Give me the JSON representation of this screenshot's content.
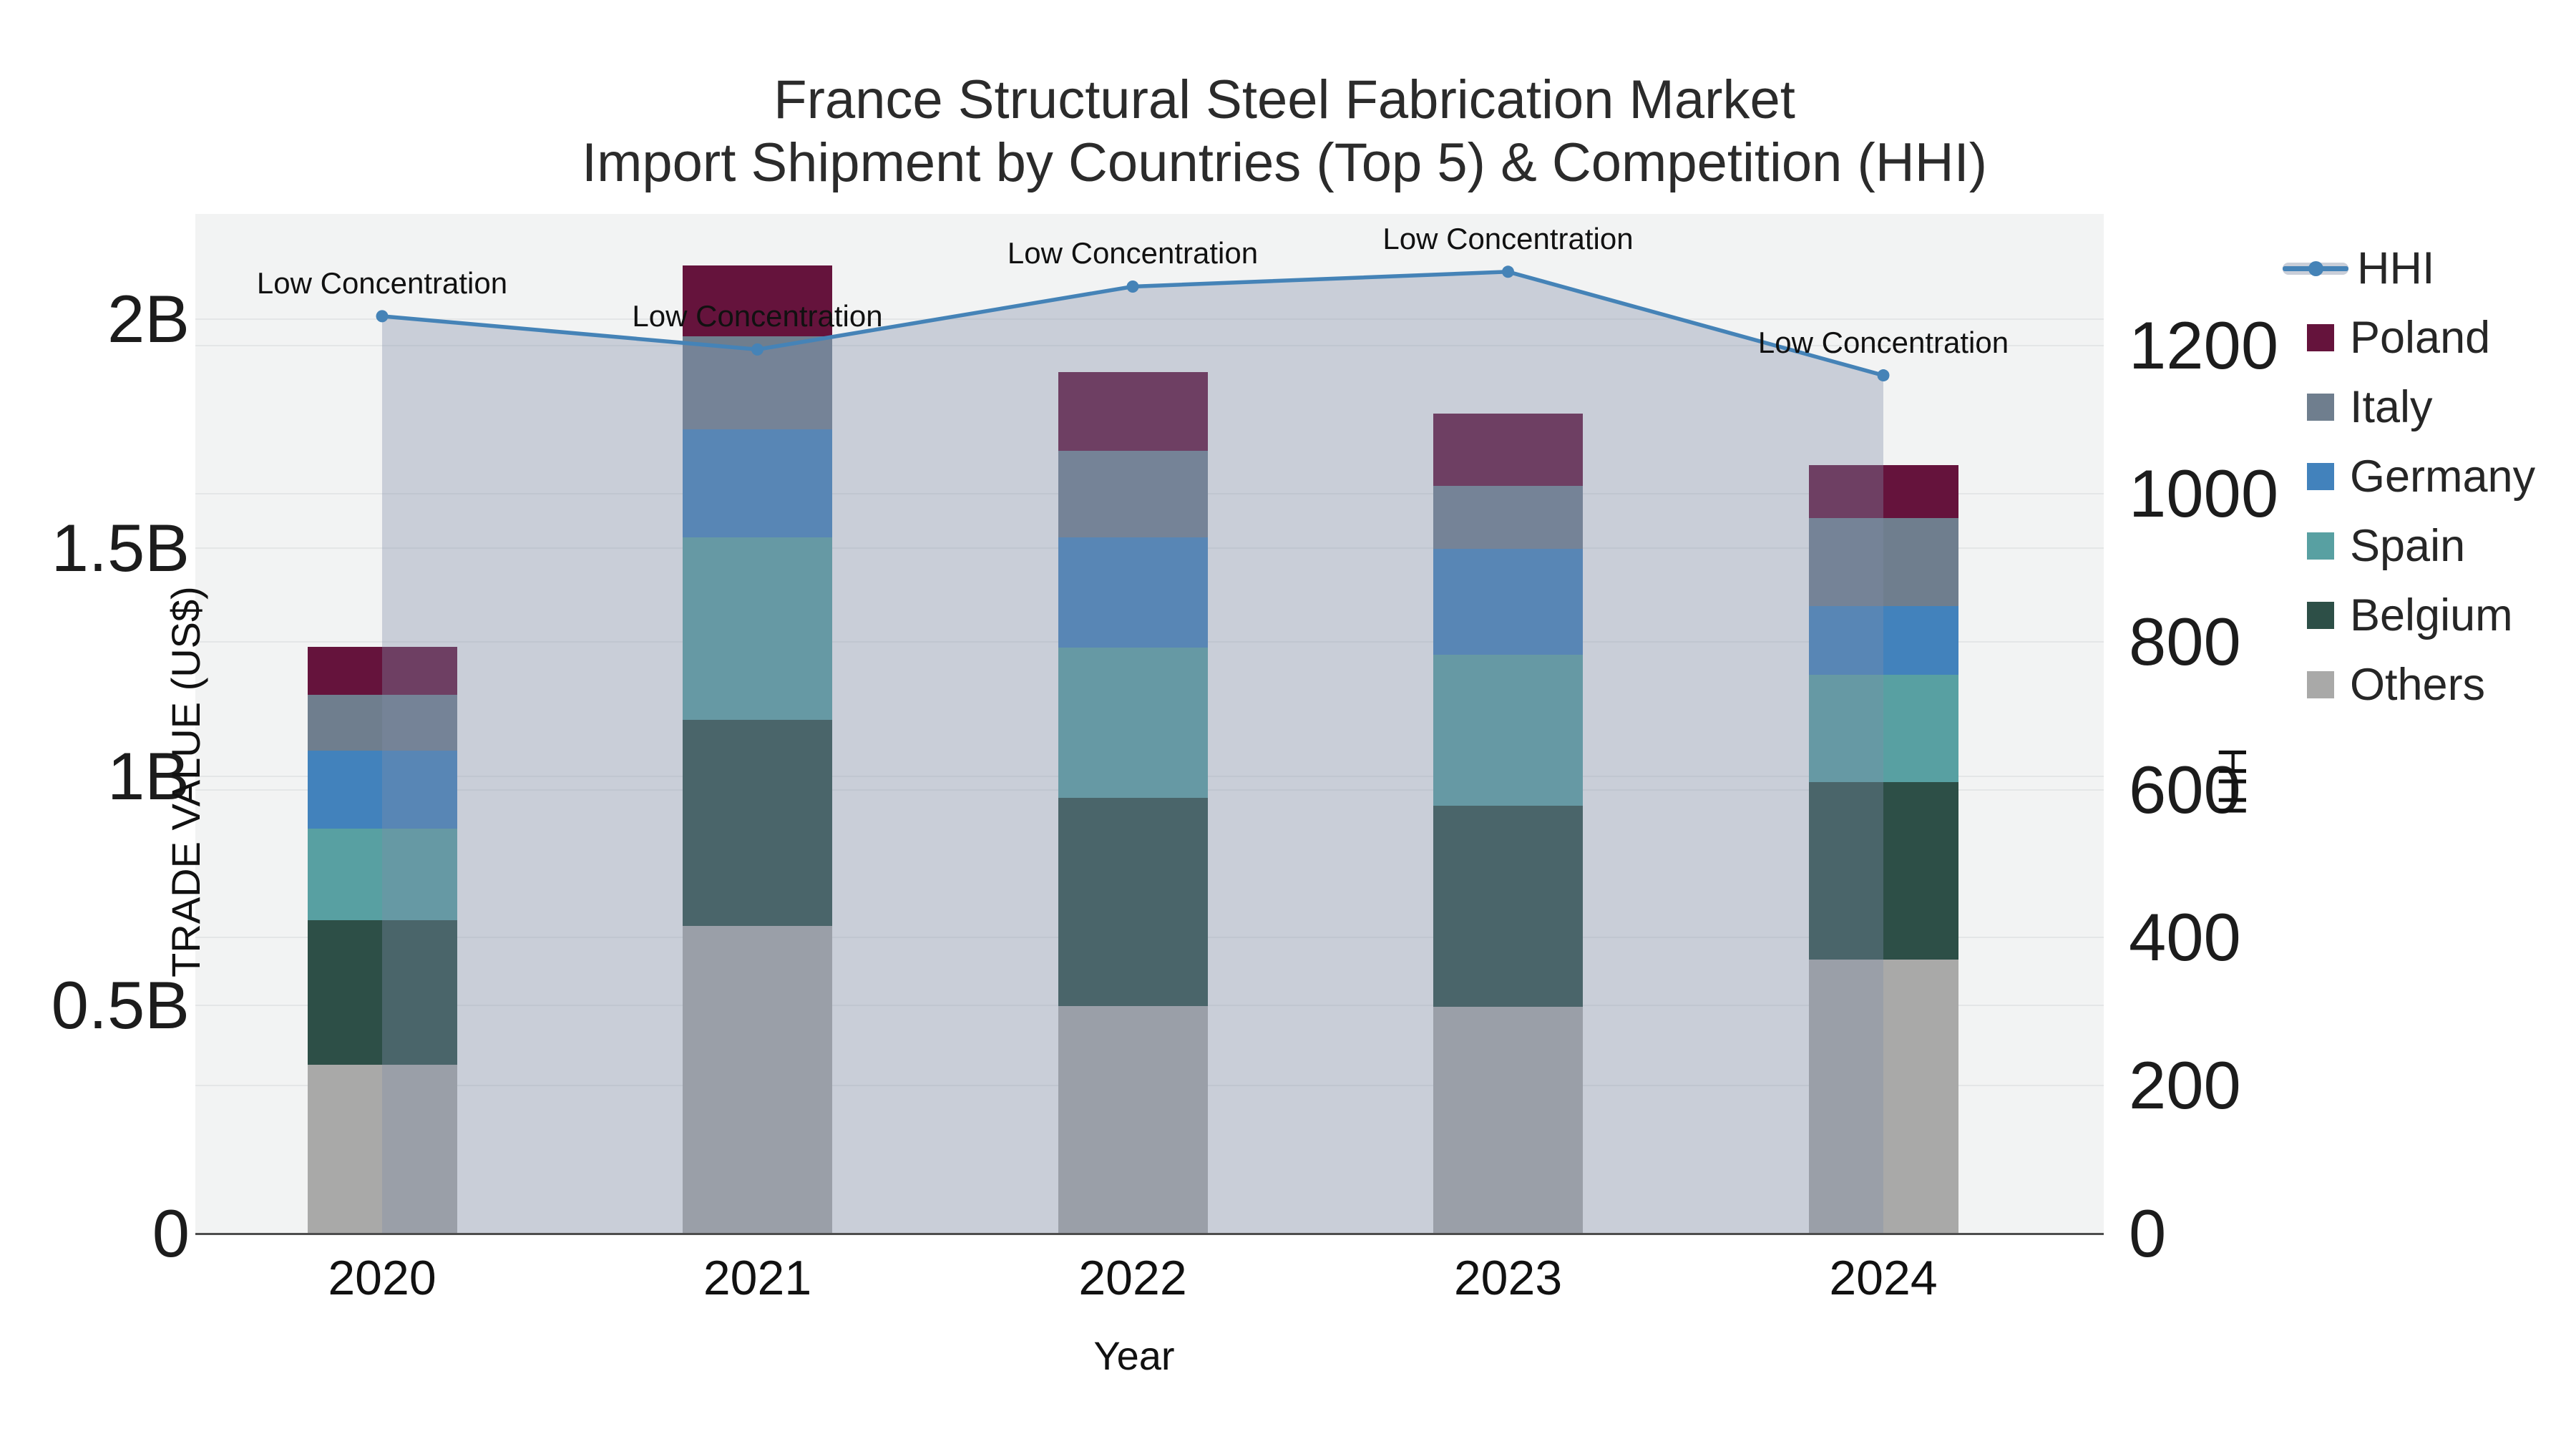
{
  "title": {
    "line1": "France Structural Steel Fabrication Market",
    "line2": "Import Shipment by Countries (Top 5) & Competition (HHI)"
  },
  "axes": {
    "x": {
      "label": "Year",
      "tick_labels": [
        "2020",
        "2021",
        "2022",
        "2023",
        "2024"
      ]
    },
    "y_left": {
      "label": "TRADE VALUE (US$)",
      "tick_labels": [
        "0",
        "0.5B",
        "1B",
        "1.5B",
        "2B"
      ],
      "tick_values_billion": [
        0,
        0.5,
        1.0,
        1.5,
        2.0
      ],
      "range_billion": [
        0,
        2.23
      ]
    },
    "y_right": {
      "label": "HHI",
      "tick_labels": [
        "0",
        "200",
        "400",
        "600",
        "800",
        "1000",
        "1200"
      ],
      "tick_values": [
        0,
        200,
        400,
        600,
        800,
        1000,
        1200
      ],
      "range": [
        0,
        1378
      ]
    }
  },
  "legend": {
    "items": [
      {
        "name": "HHI",
        "type": "line",
        "color": "#4583b7"
      },
      {
        "name": "Poland",
        "type": "swatch",
        "color": "#65133c"
      },
      {
        "name": "Italy",
        "type": "swatch",
        "color": "#6f7e8e"
      },
      {
        "name": "Germany",
        "type": "swatch",
        "color": "#4282bc"
      },
      {
        "name": "Spain",
        "type": "swatch",
        "color": "#58a0a2"
      },
      {
        "name": "Belgium",
        "type": "swatch",
        "color": "#2d4f47"
      },
      {
        "name": "Others",
        "type": "swatch",
        "color": "#a9a9a8"
      }
    ]
  },
  "chart_data": {
    "type": "bar",
    "subtype": "stacked-bar-with-line",
    "title": "France Structural Steel Fabrication Market — Import Shipment by Countries (Top 5) & Competition (HHI)",
    "xlabel": "Year",
    "ylabel_left": "TRADE VALUE (US$)",
    "ylabel_right": "HHI",
    "categories": [
      "2020",
      "2021",
      "2022",
      "2023",
      "2024"
    ],
    "series": [
      {
        "name": "Others",
        "color": "#a9a9a8",
        "values_billion": [
          0.37,
          0.673,
          0.498,
          0.496,
          0.599
        ]
      },
      {
        "name": "Belgium",
        "color": "#2d4f47",
        "values_billion": [
          0.316,
          0.451,
          0.455,
          0.44,
          0.388
        ]
      },
      {
        "name": "Spain",
        "color": "#58a0a2",
        "values_billion": [
          0.199,
          0.399,
          0.329,
          0.33,
          0.235
        ]
      },
      {
        "name": "Germany",
        "color": "#4282bc",
        "values_billion": [
          0.172,
          0.236,
          0.241,
          0.231,
          0.15
        ]
      },
      {
        "name": "Italy",
        "color": "#6f7e8e",
        "values_billion": [
          0.121,
          0.203,
          0.189,
          0.138,
          0.193
        ]
      },
      {
        "name": "Poland",
        "color": "#65133c",
        "values_billion": [
          0.105,
          0.155,
          0.172,
          0.159,
          0.116
        ]
      }
    ],
    "stack_totals_billion": [
      1.28,
      2.12,
      1.88,
      1.79,
      1.68
    ],
    "line_series": {
      "name": "HHI",
      "color": "#4583b7",
      "area_fill_color": "rgba(127,141,169,0.36)",
      "values": [
        1240,
        1195,
        1280,
        1300,
        1160
      ]
    },
    "point_annotations": [
      "Low Concentration",
      "Low Concentration",
      "Low Concentration",
      "Low Concentration",
      "Low Concentration"
    ],
    "ylim_left_billion": [
      0,
      2.23
    ],
    "ylim_right": [
      0,
      1378
    ],
    "grid": true,
    "legend_position": "right"
  }
}
